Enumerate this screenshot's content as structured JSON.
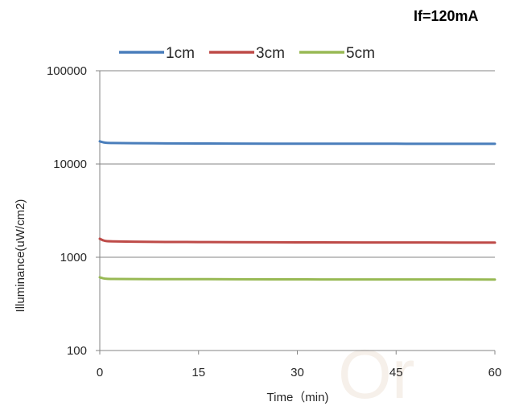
{
  "chart_data": {
    "type": "line",
    "annotation": "If=120mA",
    "watermark": "Or",
    "xlabel": "Time（min)",
    "ylabel": "Illuminance(uW/cm2)",
    "xlim": [
      0,
      60
    ],
    "ylim": [
      100,
      100000
    ],
    "yscale": "log",
    "grid": true,
    "legend_position": "top",
    "x_ticks": [
      {
        "value": 0,
        "label": "0"
      },
      {
        "value": 15,
        "label": "15"
      },
      {
        "value": 30,
        "label": "30"
      },
      {
        "value": 45,
        "label": "45"
      },
      {
        "value": 60,
        "label": "60"
      }
    ],
    "y_ticks": [
      {
        "value": 100,
        "label": "100"
      },
      {
        "value": 1000,
        "label": "1000"
      },
      {
        "value": 10000,
        "label": "10000"
      },
      {
        "value": 100000,
        "label": "100000"
      }
    ],
    "x": [
      0,
      0.5,
      1,
      2,
      5,
      10,
      15,
      20,
      30,
      40,
      45,
      50,
      60
    ],
    "series": [
      {
        "name": "1cm",
        "color": "#4a7ebb",
        "values": [
          17500,
          17100,
          16900,
          16800,
          16700,
          16650,
          16600,
          16550,
          16500,
          16500,
          16500,
          16450,
          16450
        ]
      },
      {
        "name": "3cm",
        "color": "#be4b48",
        "values": [
          1580,
          1520,
          1490,
          1480,
          1470,
          1460,
          1455,
          1450,
          1445,
          1440,
          1440,
          1440,
          1435
        ]
      },
      {
        "name": "5cm",
        "color": "#98b954",
        "values": [
          610,
          595,
          588,
          585,
          583,
          582,
          582,
          581,
          579,
          578,
          578,
          578,
          577
        ]
      }
    ]
  }
}
